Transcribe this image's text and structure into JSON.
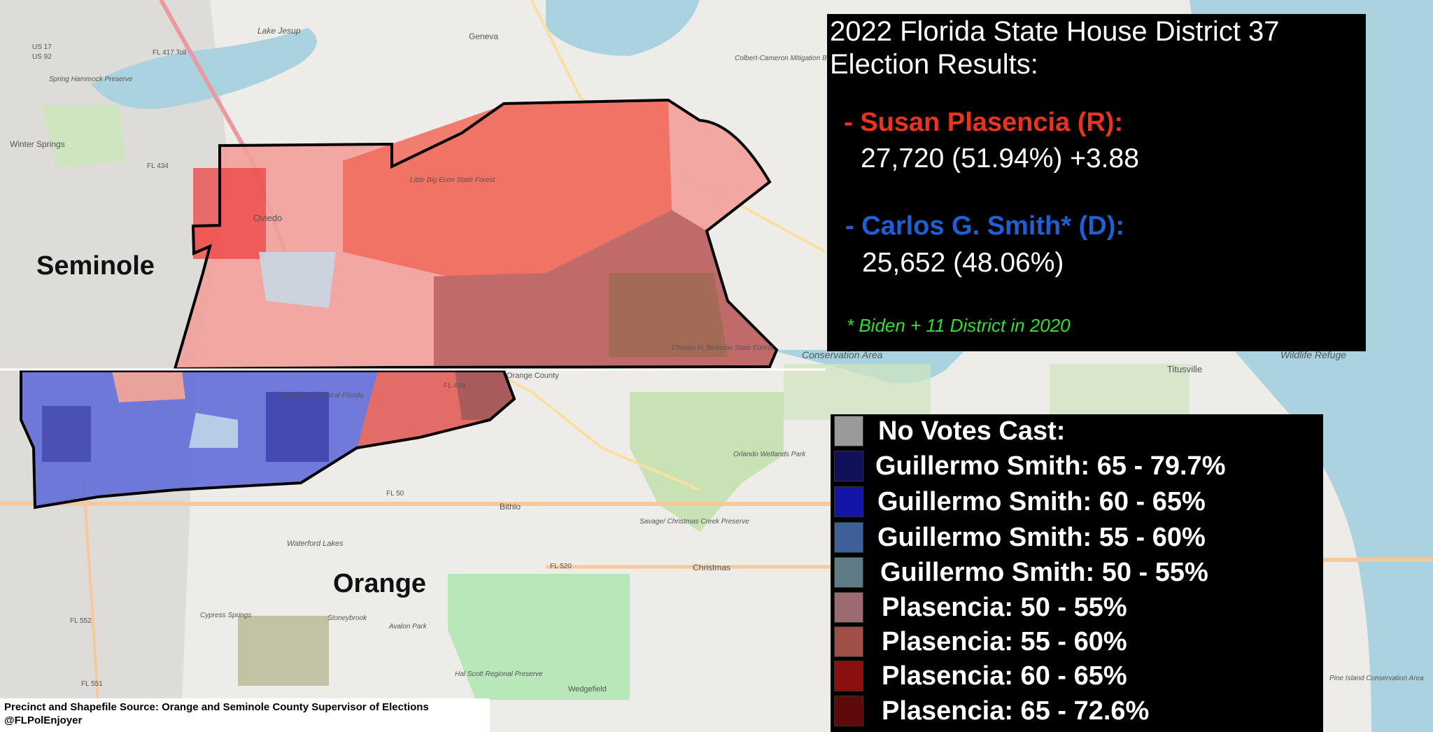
{
  "results": {
    "title_line1": "2022 Florida State House District 37",
    "title_line2": "Election Results:",
    "candidate_r": {
      "name": "- Susan Plasencia (R):",
      "votes": "27,720 (51.94%) +3.88",
      "color": "#e8341f"
    },
    "candidate_d": {
      "name": "- Carlos G. Smith* (D):",
      "votes": "25,652 (48.06%)",
      "color": "#1f5fd6"
    },
    "note": "* Biden + 11 District in 2020",
    "note_color": "#33dd33"
  },
  "legend": [
    {
      "label": "No Votes Cast:",
      "color": "#9a9a9a"
    },
    {
      "label": "Guillermo Smith: 65 - 79.7%",
      "color": "#10115a"
    },
    {
      "label": "Guillermo Smith: 60 - 65%",
      "color": "#1414a8"
    },
    {
      "label": "Guillermo Smith: 55 - 60%",
      "color": "#3e5f9a"
    },
    {
      "label": "Guillermo Smith: 50 - 55%",
      "color": "#5f7c86"
    },
    {
      "label": "Plasencia: 50 - 55%",
      "color": "#9d6b6f"
    },
    {
      "label": "Plasencia: 55 - 60%",
      "color": "#a04f47"
    },
    {
      "label": "Plasencia: 60 - 65%",
      "color": "#8a0f0f"
    },
    {
      "label": "Plasencia: 65 - 72.6%",
      "color": "#5e0a0a"
    }
  ],
  "counties": {
    "seminole": "Seminole",
    "orange": "Orange"
  },
  "map_labels": {
    "lake_jesup": "Lake Jesup",
    "geneva": "Geneva",
    "winter_springs": "Winter Springs",
    "oviedo": "Oviedo",
    "titusville": "Titusville",
    "christmas": "Christmas",
    "bithlo": "Bithlo",
    "waterford_lakes": "Waterford Lakes",
    "ucf": "University of Central Florida",
    "orlando_wetlands": "Orlando Wetlands Park",
    "hal_scott": "Hal Scott Regional Preserve",
    "wedgefield": "Wedgefield",
    "charles_bronson": "Charles H. Bronson State Forest",
    "orange_county": "Orange County",
    "fl50": "FL 50",
    "fl520": "FL 520",
    "fl417": "FL 417 Toll",
    "fl419": "FL 419",
    "fl434": "FL 434",
    "fl552": "FL 552",
    "fl551": "FL 551",
    "us17": "US 17",
    "us92": "US 92",
    "cypress_springs": "Cypress Springs",
    "stoneybrook": "Stoneybrook",
    "avalon_park": "Avalon Park",
    "savage_christmas": "Savage/ Christmas Creek Preserve",
    "spring_hammock": "Spring Hammock Preserve",
    "little_big_econ": "Little Big Econ State Forest",
    "colbert_cameron": "Colbert-Cameron Mitigation Bank",
    "conservation_area": "Conservation Area",
    "wildlife_refuge": "Wildlife Refuge",
    "pine_island": "Pine Island Conservation Area"
  },
  "source": {
    "line1": "Precinct and Shapefile Source: Orange and Seminole County Supervisor of Elections",
    "line2": "@FLPolEnjoyer"
  }
}
